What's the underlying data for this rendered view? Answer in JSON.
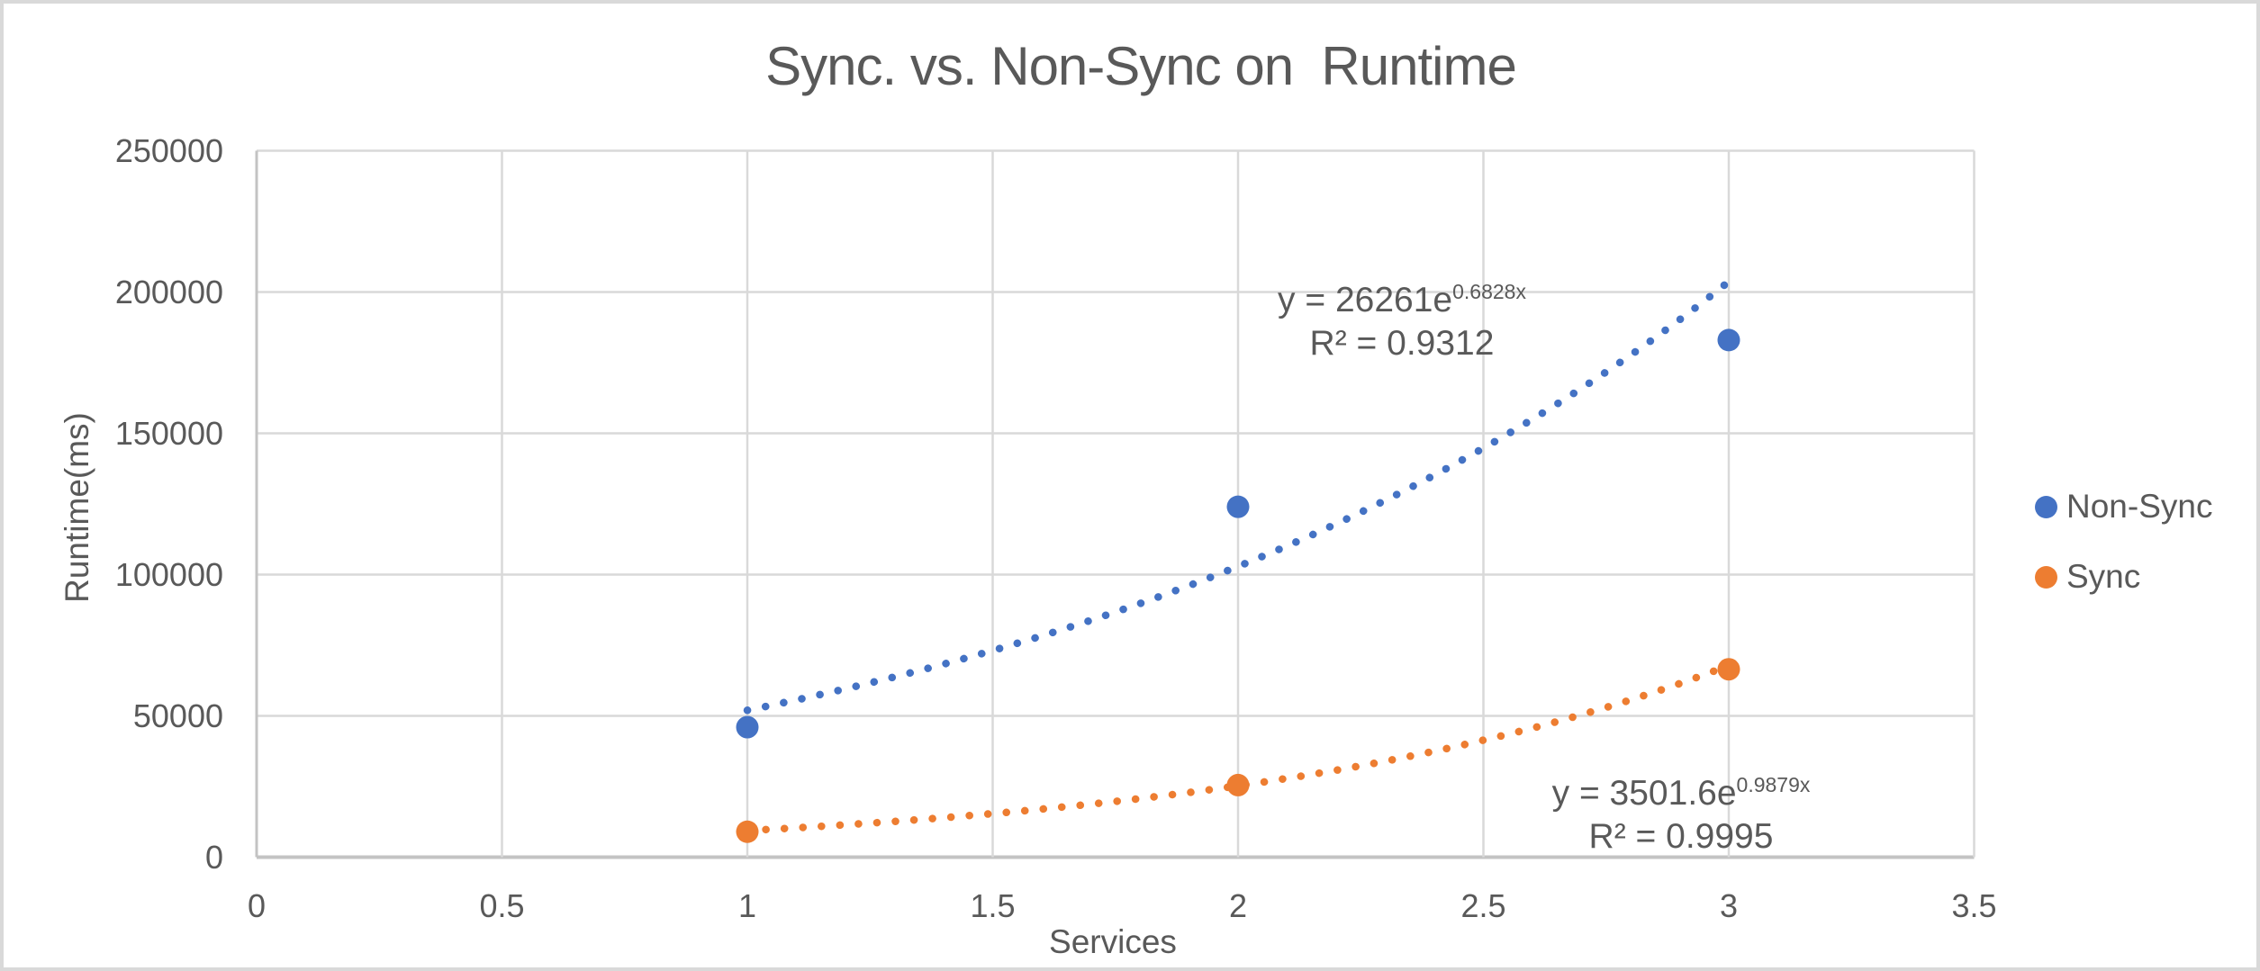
{
  "window": {
    "background": "#ffffff",
    "frame_border_color": "#d9d9d9"
  },
  "chart_data": {
    "type": "scatter",
    "title": "Sync. vs. Non-Sync on  Runtime",
    "xlabel": "Services",
    "ylabel": "Runtime(ms)",
    "xlim": [
      0,
      3.5
    ],
    "ylim": [
      0,
      250000
    ],
    "x_ticks": [
      0,
      0.5,
      1,
      1.5,
      2,
      2.5,
      3,
      3.5
    ],
    "x_tick_labels": [
      "0",
      "0.5",
      "1",
      "1.5",
      "2",
      "2.5",
      "3",
      "3.5"
    ],
    "y_ticks": [
      0,
      50000,
      100000,
      150000,
      200000,
      250000
    ],
    "y_tick_labels": [
      "0",
      "50000",
      "100000",
      "150000",
      "200000",
      "250000"
    ],
    "grid": true,
    "legend_position": "right-middle",
    "text_color": "#595959",
    "gridline_color": "#d9d9d9",
    "axis_line_color": "#c3c3c3",
    "series": [
      {
        "name": "Non-Sync",
        "color": "#4472c4",
        "marker": "circle",
        "points": [
          [
            1,
            46000
          ],
          [
            2,
            124000
          ],
          [
            3,
            183000
          ]
        ],
        "trendline": {
          "type": "exponential",
          "a": 26261,
          "b": 0.6828,
          "x_range": [
            1,
            3
          ],
          "equation_prefix": "y = 26261e",
          "equation_exponent": "0.6828x",
          "r_squared": "R² = 0.9312"
        }
      },
      {
        "name": "Sync",
        "color": "#ed7d31",
        "marker": "circle",
        "points": [
          [
            1,
            9000
          ],
          [
            2,
            25500
          ],
          [
            3,
            66500
          ]
        ],
        "trendline": {
          "type": "exponential",
          "a": 3501.6,
          "b": 0.9879,
          "x_range": [
            1,
            3
          ],
          "equation_prefix": "y = 3501.6e",
          "equation_exponent": "0.9879x",
          "r_squared": "R² = 0.9995"
        }
      }
    ]
  }
}
